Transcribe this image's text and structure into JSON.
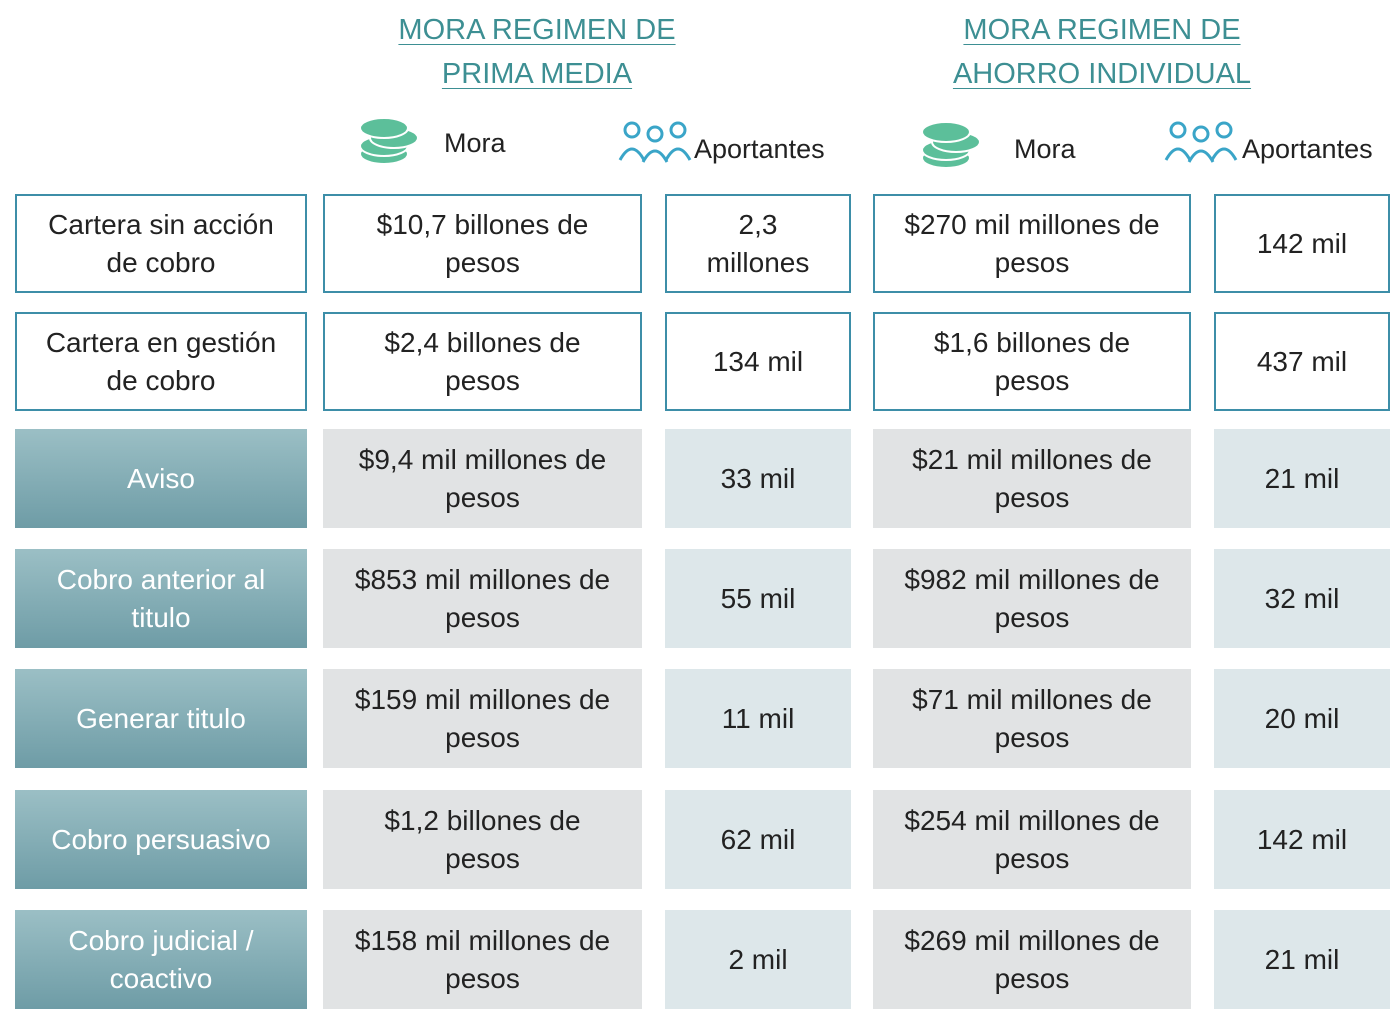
{
  "header": {
    "groups": [
      {
        "title_lines": [
          "MORA REGIMEN DE",
          "PRIMA MEDIA"
        ],
        "columns": [
          "Mora",
          "Aportantes"
        ]
      },
      {
        "title_lines": [
          "MORA REGIMEN DE",
          "AHORRO INDIVIDUAL"
        ],
        "columns": [
          "Mora",
          "Aportantes"
        ]
      }
    ]
  },
  "table": {
    "rows": [
      {
        "label": "Cartera sin acción de cobro",
        "cells": [
          "$10,7 billones de pesos",
          "2,3 millones",
          "$270 mil millones de pesos",
          "142 mil"
        ]
      },
      {
        "label": "Cartera en gestión de cobro",
        "cells": [
          "$2,4 billones de pesos",
          "134 mil",
          "$1,6 billones de pesos",
          "437 mil"
        ]
      },
      {
        "label": "Aviso",
        "cells": [
          "$9,4 mil millones de pesos",
          "33 mil",
          "$21 mil millones de pesos",
          "21 mil"
        ]
      },
      {
        "label": "Cobro anterior al titulo",
        "cells": [
          "$853 mil millones de pesos",
          "55 mil",
          "$982 mil millones de pesos",
          "32 mil"
        ]
      },
      {
        "label": "Generar titulo",
        "cells": [
          "$159 mil millones de pesos",
          "11 mil",
          "$71 mil millones de pesos",
          "20 mil"
        ]
      },
      {
        "label": "Cobro persuasivo",
        "cells": [
          "$1,2  billones de pesos",
          "62 mil",
          "$254 mil millones de pesos",
          "142 mil"
        ]
      },
      {
        "label": "Cobro judicial / coactivo",
        "cells": [
          "$158 mil millones de pesos",
          "2 mil",
          "$269 mil millones de pesos",
          "21 mil"
        ]
      }
    ]
  }
}
